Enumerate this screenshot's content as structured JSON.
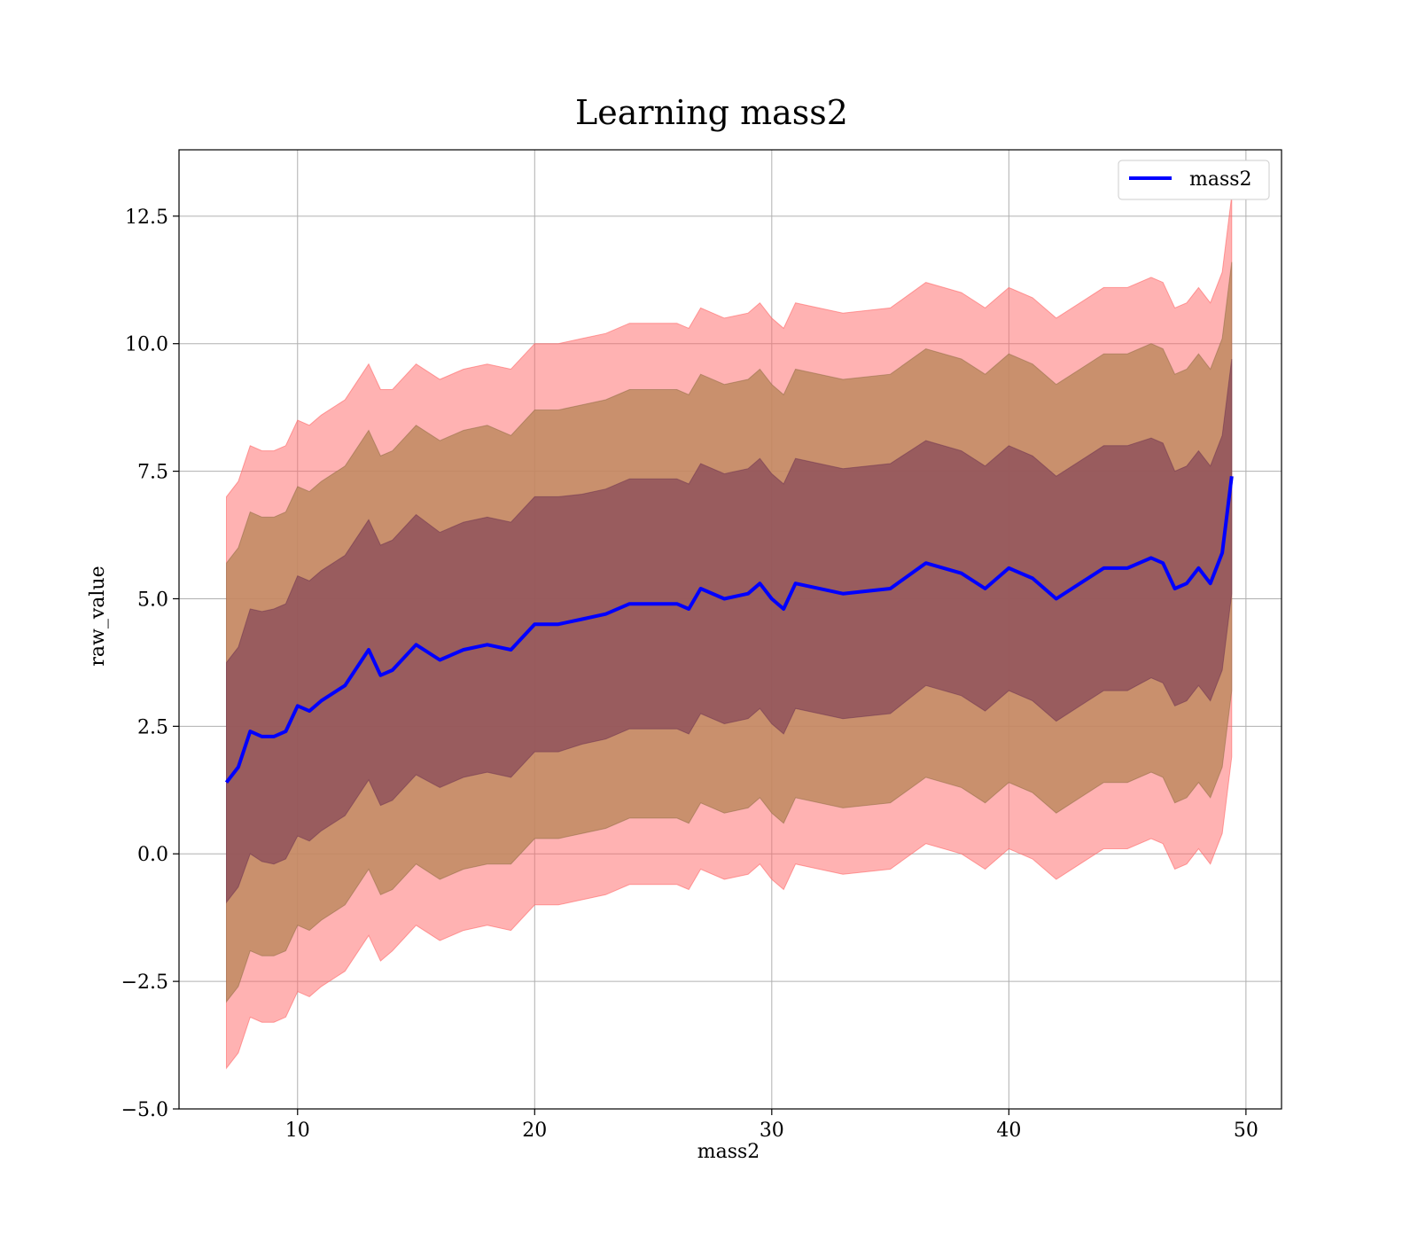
{
  "chart_data": {
    "type": "line",
    "title": "Learning mass2",
    "xlabel": "mass2",
    "ylabel": "raw_value",
    "xlim": [
      5,
      51.5
    ],
    "ylim": [
      -5,
      13.8
    ],
    "grid": true,
    "legend_placement": "upper right",
    "x_ticks": [
      10,
      20,
      30,
      40,
      50
    ],
    "x_tick_labels": [
      "10",
      "20",
      "30",
      "40",
      "50"
    ],
    "y_ticks": [
      -5,
      -2.5,
      0,
      2.5,
      5,
      7.5,
      10,
      12.5
    ],
    "y_tick_labels": [
      "−5.0",
      "−2.5",
      "0.0",
      "2.5",
      "5.0",
      "7.5",
      "10.0",
      "12.5"
    ],
    "series": [
      {
        "name": "mass2",
        "color": "#0000ff",
        "x": [
          7.0,
          7.5,
          8.0,
          8.5,
          9.0,
          9.5,
          10.0,
          10.5,
          11.0,
          12.0,
          13.0,
          13.5,
          14.0,
          15.0,
          16.0,
          17.0,
          18.0,
          19.0,
          20.0,
          21.0,
          22.0,
          23.0,
          24.0,
          25.0,
          26.0,
          26.5,
          27.0,
          28.0,
          29.0,
          29.5,
          30.0,
          30.5,
          31.0,
          33.0,
          35.0,
          36.5,
          38.0,
          39.0,
          40.0,
          41.0,
          42.0,
          43.0,
          44.0,
          45.0,
          46.0,
          46.5,
          47.0,
          47.5,
          48.0,
          48.5,
          49.0,
          49.4
        ],
        "y": [
          1.4,
          1.7,
          2.4,
          2.3,
          2.3,
          2.4,
          2.9,
          2.8,
          3.0,
          3.3,
          4.0,
          3.5,
          3.6,
          4.1,
          3.8,
          4.0,
          4.1,
          4.0,
          4.5,
          4.5,
          4.6,
          4.7,
          4.9,
          4.9,
          4.9,
          4.8,
          5.2,
          5.0,
          5.1,
          5.3,
          5.0,
          4.8,
          5.3,
          5.1,
          5.2,
          5.7,
          5.5,
          5.2,
          5.6,
          5.4,
          5.0,
          5.3,
          5.6,
          5.6,
          5.8,
          5.7,
          5.2,
          5.3,
          5.6,
          5.3,
          5.9,
          7.4
        ],
        "band_1sd": [
          2.35,
          2.35,
          2.4,
          2.45,
          2.5,
          2.5,
          2.55,
          2.55,
          2.55,
          2.55,
          2.55,
          2.55,
          2.55,
          2.55,
          2.5,
          2.5,
          2.5,
          2.5,
          2.5,
          2.5,
          2.45,
          2.45,
          2.45,
          2.45,
          2.45,
          2.45,
          2.45,
          2.45,
          2.45,
          2.45,
          2.45,
          2.45,
          2.45,
          2.45,
          2.45,
          2.4,
          2.4,
          2.4,
          2.4,
          2.4,
          2.4,
          2.4,
          2.4,
          2.4,
          2.35,
          2.35,
          2.3,
          2.3,
          2.3,
          2.3,
          2.3,
          2.3
        ],
        "band_2sd": [
          4.3,
          4.3,
          4.3,
          4.3,
          4.3,
          4.3,
          4.3,
          4.3,
          4.3,
          4.3,
          4.3,
          4.3,
          4.3,
          4.3,
          4.3,
          4.3,
          4.3,
          4.2,
          4.2,
          4.2,
          4.2,
          4.2,
          4.2,
          4.2,
          4.2,
          4.2,
          4.2,
          4.2,
          4.2,
          4.2,
          4.2,
          4.2,
          4.2,
          4.2,
          4.2,
          4.2,
          4.2,
          4.2,
          4.2,
          4.2,
          4.2,
          4.2,
          4.2,
          4.2,
          4.2,
          4.2,
          4.2,
          4.2,
          4.2,
          4.2,
          4.2,
          4.2
        ],
        "band_3sd": [
          5.6,
          5.6,
          5.6,
          5.6,
          5.6,
          5.6,
          5.6,
          5.6,
          5.6,
          5.6,
          5.6,
          5.6,
          5.5,
          5.5,
          5.5,
          5.5,
          5.5,
          5.5,
          5.5,
          5.5,
          5.5,
          5.5,
          5.5,
          5.5,
          5.5,
          5.5,
          5.5,
          5.5,
          5.5,
          5.5,
          5.5,
          5.5,
          5.5,
          5.5,
          5.5,
          5.5,
          5.5,
          5.5,
          5.5,
          5.5,
          5.5,
          5.5,
          5.5,
          5.5,
          5.5,
          5.5,
          5.5,
          5.5,
          5.5,
          5.5,
          5.5,
          5.5
        ]
      }
    ],
    "band_colors": {
      "outer": "#ff6666",
      "middle": "#c08a60",
      "inner": "#7a3a55"
    }
  }
}
